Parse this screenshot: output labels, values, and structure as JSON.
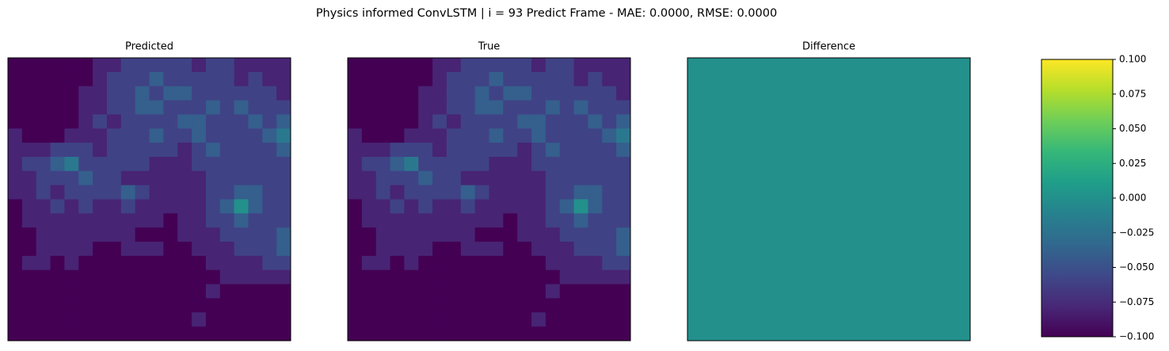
{
  "figure_title": "Physics informed ConvLSTM | i = 93 Predict Frame - MAE: 0.0000, RMSE: 0.0000",
  "chart_data": [
    {
      "type": "heatmap",
      "title": "Predicted",
      "clim": [
        0,
        1
      ],
      "values": [
        [
          0,
          0,
          0,
          0,
          0,
          0,
          0.1,
          0.1,
          0.2,
          0.2,
          0.2,
          0.2,
          0.2,
          0.1,
          0.2,
          0.2,
          0.1,
          0.1,
          0.1,
          0.1
        ],
        [
          0,
          0,
          0,
          0,
          0,
          0,
          0.1,
          0.2,
          0.2,
          0.2,
          0.3,
          0.2,
          0.2,
          0.2,
          0.2,
          0.2,
          0.1,
          0.2,
          0.1,
          0.1
        ],
        [
          0,
          0,
          0,
          0,
          0,
          0.1,
          0.1,
          0.2,
          0.2,
          0.3,
          0.2,
          0.3,
          0.3,
          0.2,
          0.2,
          0.2,
          0.2,
          0.2,
          0.2,
          0.1
        ],
        [
          0,
          0,
          0,
          0,
          0,
          0.1,
          0.1,
          0.2,
          0.2,
          0.3,
          0.3,
          0.2,
          0.2,
          0.2,
          0.3,
          0.2,
          0.3,
          0.2,
          0.2,
          0.2
        ],
        [
          0,
          0,
          0,
          0,
          0,
          0.1,
          0.2,
          0.1,
          0.2,
          0.2,
          0.2,
          0.2,
          0.3,
          0.3,
          0.2,
          0.2,
          0.2,
          0.3,
          0.2,
          0.3
        ],
        [
          0.1,
          0,
          0,
          0,
          0.1,
          0.1,
          0.1,
          0.2,
          0.2,
          0.2,
          0.3,
          0.2,
          0.2,
          0.3,
          0.2,
          0.2,
          0.2,
          0.2,
          0.3,
          0.4
        ],
        [
          0.1,
          0.1,
          0.1,
          0.2,
          0.2,
          0.2,
          0.1,
          0.2,
          0.2,
          0.2,
          0.2,
          0.2,
          0.1,
          0.2,
          0.3,
          0.2,
          0.2,
          0.2,
          0.2,
          0.3
        ],
        [
          0.1,
          0.2,
          0.2,
          0.3,
          0.4,
          0.2,
          0.2,
          0.2,
          0.2,
          0.2,
          0.1,
          0.1,
          0.1,
          0.2,
          0.2,
          0.2,
          0.2,
          0.2,
          0.2,
          0.2
        ],
        [
          0.1,
          0.1,
          0.2,
          0.2,
          0.2,
          0.3,
          0.2,
          0.2,
          0.1,
          0.1,
          0.1,
          0.1,
          0.1,
          0.1,
          0.2,
          0.2,
          0.2,
          0.2,
          0.2,
          0.2
        ],
        [
          0.1,
          0.1,
          0.2,
          0.1,
          0.2,
          0.2,
          0.2,
          0.2,
          0.3,
          0.2,
          0.1,
          0.1,
          0.1,
          0.1,
          0.2,
          0.2,
          0.3,
          0.3,
          0.2,
          0.2
        ],
        [
          0,
          0.1,
          0.1,
          0.2,
          0.1,
          0.2,
          0.1,
          0.1,
          0.2,
          0.1,
          0.1,
          0.1,
          0.1,
          0.1,
          0.2,
          0.3,
          0.5,
          0.3,
          0.2,
          0.2
        ],
        [
          0,
          0.1,
          0.1,
          0.1,
          0.1,
          0.1,
          0.1,
          0.1,
          0.1,
          0.1,
          0.1,
          0,
          0.1,
          0.1,
          0.2,
          0.2,
          0.3,
          0.2,
          0.2,
          0.2
        ],
        [
          0,
          0,
          0.1,
          0.1,
          0.1,
          0.1,
          0.1,
          0.1,
          0.1,
          0,
          0,
          0,
          0.1,
          0.1,
          0.1,
          0.2,
          0.2,
          0.2,
          0.2,
          0.3
        ],
        [
          0,
          0,
          0.1,
          0.1,
          0.1,
          0.1,
          0,
          0,
          0.1,
          0.1,
          0.1,
          0,
          0,
          0.1,
          0.1,
          0.1,
          0.2,
          0.2,
          0.2,
          0.3
        ],
        [
          0,
          0.1,
          0.1,
          0,
          0.1,
          0,
          0,
          0,
          0,
          0,
          0,
          0,
          0,
          0,
          0.1,
          0.1,
          0.1,
          0.1,
          0.2,
          0.2
        ],
        [
          0,
          0,
          0,
          0,
          0,
          0,
          0,
          0,
          0,
          0,
          0,
          0,
          0,
          0,
          0,
          0.1,
          0.1,
          0.1,
          0.1,
          0.1
        ],
        [
          0,
          0,
          0,
          0,
          0,
          0,
          0,
          0,
          0,
          0,
          0,
          0,
          0,
          0,
          0.1,
          0,
          0,
          0,
          0,
          0
        ],
        [
          0,
          0,
          0,
          0,
          0,
          0,
          0,
          0,
          0,
          0,
          0,
          0,
          0,
          0,
          0,
          0,
          0,
          0,
          0,
          0
        ],
        [
          0,
          0,
          0,
          0,
          0,
          0,
          0,
          0,
          0,
          0,
          0,
          0,
          0,
          0.1,
          0,
          0,
          0,
          0,
          0,
          0
        ],
        [
          0,
          0,
          0,
          0,
          0,
          0,
          0,
          0,
          0,
          0,
          0,
          0,
          0,
          0,
          0,
          0,
          0,
          0,
          0,
          0
        ]
      ]
    },
    {
      "type": "heatmap",
      "title": "True",
      "clim": [
        0,
        1
      ],
      "values": [
        [
          0,
          0,
          0,
          0,
          0,
          0,
          0.1,
          0.1,
          0.2,
          0.2,
          0.2,
          0.2,
          0.2,
          0.1,
          0.2,
          0.2,
          0.1,
          0.1,
          0.1,
          0.1
        ],
        [
          0,
          0,
          0,
          0,
          0,
          0,
          0.1,
          0.2,
          0.2,
          0.2,
          0.3,
          0.2,
          0.2,
          0.2,
          0.2,
          0.2,
          0.1,
          0.2,
          0.1,
          0.1
        ],
        [
          0,
          0,
          0,
          0,
          0,
          0.1,
          0.1,
          0.2,
          0.2,
          0.3,
          0.2,
          0.3,
          0.3,
          0.2,
          0.2,
          0.2,
          0.2,
          0.2,
          0.2,
          0.1
        ],
        [
          0,
          0,
          0,
          0,
          0,
          0.1,
          0.1,
          0.2,
          0.2,
          0.3,
          0.3,
          0.2,
          0.2,
          0.2,
          0.3,
          0.2,
          0.3,
          0.2,
          0.2,
          0.2
        ],
        [
          0,
          0,
          0,
          0,
          0,
          0.1,
          0.2,
          0.1,
          0.2,
          0.2,
          0.2,
          0.2,
          0.3,
          0.3,
          0.2,
          0.2,
          0.2,
          0.3,
          0.2,
          0.3
        ],
        [
          0.1,
          0,
          0,
          0,
          0.1,
          0.1,
          0.1,
          0.2,
          0.2,
          0.2,
          0.3,
          0.2,
          0.2,
          0.3,
          0.2,
          0.2,
          0.2,
          0.2,
          0.3,
          0.4
        ],
        [
          0.1,
          0.1,
          0.1,
          0.2,
          0.2,
          0.2,
          0.1,
          0.2,
          0.2,
          0.2,
          0.2,
          0.2,
          0.1,
          0.2,
          0.3,
          0.2,
          0.2,
          0.2,
          0.2,
          0.3
        ],
        [
          0.1,
          0.2,
          0.2,
          0.3,
          0.4,
          0.2,
          0.2,
          0.2,
          0.2,
          0.2,
          0.1,
          0.1,
          0.1,
          0.2,
          0.2,
          0.2,
          0.2,
          0.2,
          0.2,
          0.2
        ],
        [
          0.1,
          0.1,
          0.2,
          0.2,
          0.2,
          0.3,
          0.2,
          0.2,
          0.1,
          0.1,
          0.1,
          0.1,
          0.1,
          0.1,
          0.2,
          0.2,
          0.2,
          0.2,
          0.2,
          0.2
        ],
        [
          0.1,
          0.1,
          0.2,
          0.1,
          0.2,
          0.2,
          0.2,
          0.2,
          0.3,
          0.2,
          0.1,
          0.1,
          0.1,
          0.1,
          0.2,
          0.2,
          0.3,
          0.3,
          0.2,
          0.2
        ],
        [
          0,
          0.1,
          0.1,
          0.2,
          0.1,
          0.2,
          0.1,
          0.1,
          0.2,
          0.1,
          0.1,
          0.1,
          0.1,
          0.1,
          0.2,
          0.3,
          0.5,
          0.3,
          0.2,
          0.2
        ],
        [
          0,
          0.1,
          0.1,
          0.1,
          0.1,
          0.1,
          0.1,
          0.1,
          0.1,
          0.1,
          0.1,
          0,
          0.1,
          0.1,
          0.2,
          0.2,
          0.3,
          0.2,
          0.2,
          0.2
        ],
        [
          0,
          0,
          0.1,
          0.1,
          0.1,
          0.1,
          0.1,
          0.1,
          0.1,
          0,
          0,
          0,
          0.1,
          0.1,
          0.1,
          0.2,
          0.2,
          0.2,
          0.2,
          0.3
        ],
        [
          0,
          0,
          0.1,
          0.1,
          0.1,
          0.1,
          0,
          0,
          0.1,
          0.1,
          0.1,
          0,
          0,
          0.1,
          0.1,
          0.1,
          0.2,
          0.2,
          0.2,
          0.3
        ],
        [
          0,
          0.1,
          0.1,
          0,
          0.1,
          0,
          0,
          0,
          0,
          0,
          0,
          0,
          0,
          0,
          0.1,
          0.1,
          0.1,
          0.1,
          0.2,
          0.2
        ],
        [
          0,
          0,
          0,
          0,
          0,
          0,
          0,
          0,
          0,
          0,
          0,
          0,
          0,
          0,
          0,
          0.1,
          0.1,
          0.1,
          0.1,
          0.1
        ],
        [
          0,
          0,
          0,
          0,
          0,
          0,
          0,
          0,
          0,
          0,
          0,
          0,
          0,
          0,
          0.1,
          0,
          0,
          0,
          0,
          0
        ],
        [
          0,
          0,
          0,
          0,
          0,
          0,
          0,
          0,
          0,
          0,
          0,
          0,
          0,
          0,
          0,
          0,
          0,
          0,
          0,
          0
        ],
        [
          0,
          0,
          0,
          0,
          0,
          0,
          0,
          0,
          0,
          0,
          0,
          0,
          0,
          0.1,
          0,
          0,
          0,
          0,
          0,
          0
        ],
        [
          0,
          0,
          0,
          0,
          0,
          0,
          0,
          0,
          0,
          0,
          0,
          0,
          0,
          0,
          0,
          0,
          0,
          0,
          0,
          0
        ]
      ]
    },
    {
      "type": "heatmap",
      "title": "Difference",
      "clim": [
        -0.1,
        0.1
      ],
      "values": [
        [
          0
        ]
      ],
      "colorbar_ticks": [
        {
          "value": -0.1,
          "label": "−0.100"
        },
        {
          "value": -0.075,
          "label": "−0.075"
        },
        {
          "value": -0.05,
          "label": "−0.050"
        },
        {
          "value": -0.025,
          "label": "−0.025"
        },
        {
          "value": 0,
          "label": "0.000"
        },
        {
          "value": 0.025,
          "label": "0.025"
        },
        {
          "value": 0.05,
          "label": "0.050"
        },
        {
          "value": 0.075,
          "label": "0.075"
        },
        {
          "value": 0.1,
          "label": "0.100"
        }
      ]
    }
  ]
}
